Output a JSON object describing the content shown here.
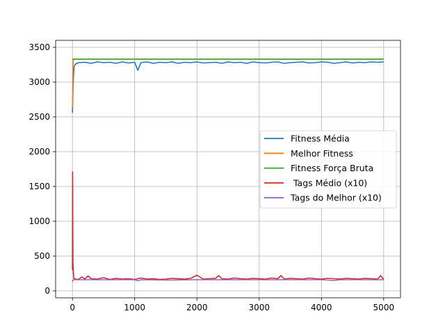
{
  "chart_data": {
    "type": "line",
    "title": "",
    "xlabel": "",
    "ylabel": "",
    "xlim": [
      -270,
      5270
    ],
    "ylim": [
      -100,
      3600
    ],
    "xticks": [
      0,
      1000,
      2000,
      3000,
      4000,
      5000
    ],
    "xtick_labels": [
      "0",
      "1000",
      "2000",
      "3000",
      "4000",
      "5000"
    ],
    "yticks": [
      0,
      500,
      1000,
      1500,
      2000,
      2500,
      3000,
      3500
    ],
    "ytick_labels": [
      "0",
      "500",
      "1000",
      "1500",
      "2000",
      "2500",
      "3000",
      "3500"
    ],
    "grid": true,
    "legend_position": "center-right",
    "series": [
      {
        "name": "Fitness Média",
        "color": "#1f77b4",
        "x": [
          0,
          10,
          25,
          50,
          100,
          200,
          300,
          400,
          500,
          600,
          700,
          800,
          900,
          1000,
          1050,
          1100,
          1200,
          1300,
          1400,
          1500,
          1600,
          1700,
          1800,
          1900,
          2000,
          2100,
          2200,
          2300,
          2400,
          2500,
          2600,
          2700,
          2800,
          2900,
          3000,
          3100,
          3200,
          3300,
          3400,
          3500,
          3600,
          3700,
          3800,
          3900,
          4000,
          4100,
          4200,
          4300,
          4400,
          4500,
          4600,
          4700,
          4800,
          4900,
          5000
        ],
        "values": [
          2560,
          2950,
          3220,
          3260,
          3280,
          3285,
          3270,
          3290,
          3280,
          3285,
          3270,
          3290,
          3275,
          3285,
          3170,
          3280,
          3290,
          3270,
          3285,
          3280,
          3290,
          3270,
          3285,
          3280,
          3290,
          3275,
          3280,
          3285,
          3270,
          3290,
          3280,
          3285,
          3270,
          3290,
          3280,
          3275,
          3285,
          3290,
          3270,
          3280,
          3285,
          3290,
          3275,
          3280,
          3290,
          3285,
          3270,
          3280,
          3290,
          3275,
          3285,
          3280,
          3290,
          3285,
          3290
        ]
      },
      {
        "name": "Melhor Fitness",
        "color": "#ff7f0e",
        "x": [
          0,
          10,
          25,
          5000
        ],
        "values": [
          2640,
          3320,
          3330,
          3330
        ]
      },
      {
        "name": "Fitness Força Bruta",
        "color": "#2ca02c",
        "x": [
          0,
          5000
        ],
        "values": [
          3330,
          3330
        ]
      },
      {
        "name": " Tags Médio (x10)",
        "color": "#d62728",
        "x": [
          0,
          3,
          8,
          20,
          50,
          100,
          150,
          200,
          250,
          300,
          400,
          500,
          600,
          700,
          800,
          900,
          1000,
          1100,
          1200,
          1300,
          1400,
          1500,
          1600,
          1700,
          1800,
          1900,
          2000,
          2100,
          2200,
          2300,
          2350,
          2400,
          2500,
          2600,
          2700,
          2800,
          2900,
          3000,
          3100,
          3200,
          3300,
          3350,
          3400,
          3500,
          3600,
          3700,
          3800,
          3900,
          4000,
          4100,
          4200,
          4300,
          4400,
          4500,
          4600,
          4700,
          4800,
          4900,
          4950,
          5000
        ],
        "values": [
          300,
          1710,
          400,
          180,
          170,
          165,
          200,
          170,
          215,
          175,
          170,
          190,
          165,
          180,
          170,
          175,
          165,
          185,
          170,
          175,
          165,
          170,
          180,
          175,
          170,
          180,
          225,
          170,
          175,
          180,
          220,
          175,
          170,
          185,
          175,
          170,
          180,
          175,
          170,
          185,
          175,
          220,
          170,
          180,
          175,
          170,
          185,
          175,
          170,
          180,
          175,
          170,
          180,
          175,
          170,
          180,
          175,
          170,
          220,
          165
        ]
      },
      {
        "name": "Tags do Melhor (x10)",
        "color": "#9467bd",
        "x": [
          0,
          5,
          20,
          100,
          500,
          1000,
          1050,
          1100,
          1500,
          2000,
          2500,
          3000,
          3500,
          4000,
          4200,
          4300,
          4500,
          5000
        ],
        "values": [
          130,
          150,
          160,
          160,
          160,
          160,
          145,
          160,
          155,
          160,
          160,
          160,
          160,
          160,
          150,
          160,
          160,
          160
        ]
      }
    ]
  }
}
